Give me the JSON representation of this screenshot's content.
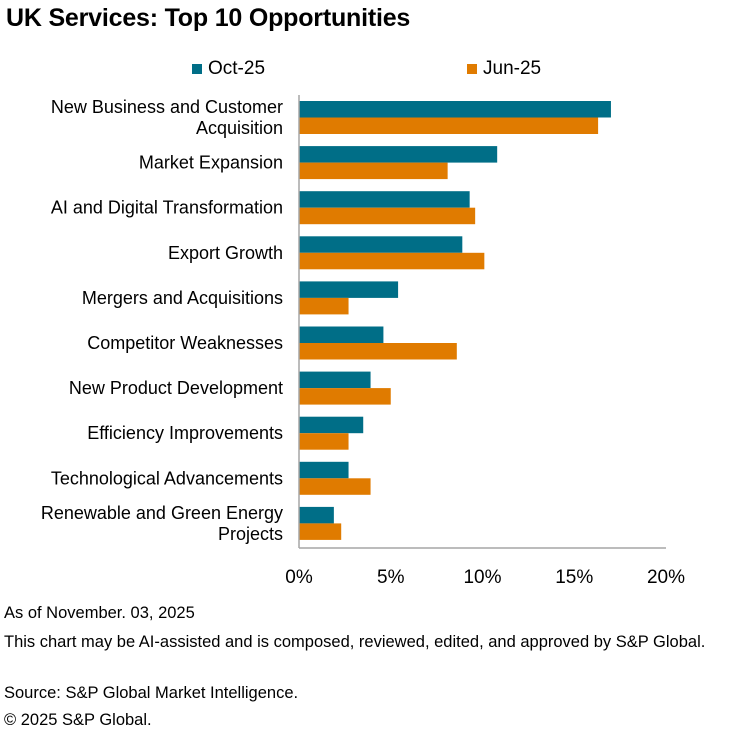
{
  "header": {
    "title": "UK Services: Top 10 Opportunities"
  },
  "colors": {
    "series1": "#006e87",
    "series2": "#e07b00",
    "axis": "#a6a6a6"
  },
  "chart_data": {
    "type": "bar",
    "orientation": "horizontal",
    "title": "UK Services: Top 10 Opportunities",
    "categories": [
      "New Business and Customer Acquisition",
      "Market Expansion",
      "AI and Digital Transformation",
      "Export Growth",
      "Mergers and Acquisitions",
      "Competitor Weaknesses",
      "New Product Development",
      "Efficiency Improvements",
      "Technological Advancements",
      "Renewable and Green Energy Projects"
    ],
    "category_lines": [
      [
        "New Business and Customer",
        "Acquisition"
      ],
      [
        "Market Expansion"
      ],
      [
        "AI and Digital Transformation"
      ],
      [
        "Export Growth"
      ],
      [
        "Mergers and Acquisitions"
      ],
      [
        "Competitor Weaknesses"
      ],
      [
        "New Product Development"
      ],
      [
        "Efficiency Improvements"
      ],
      [
        "Technological Advancements"
      ],
      [
        "Renewable and Green Energy",
        "Projects"
      ]
    ],
    "series": [
      {
        "name": "Oct-25",
        "values": [
          17.0,
          10.8,
          9.3,
          8.9,
          5.4,
          4.6,
          3.9,
          3.5,
          2.7,
          1.9
        ]
      },
      {
        "name": "Jun-25",
        "values": [
          16.3,
          8.1,
          9.6,
          10.1,
          2.7,
          8.6,
          5.0,
          2.7,
          3.9,
          2.3
        ]
      }
    ],
    "xlim": [
      0,
      20
    ],
    "xticks": [
      0,
      5,
      10,
      15,
      20
    ],
    "xtick_labels": [
      "0%",
      "5%",
      "10%",
      "15%",
      "20%"
    ],
    "xlabel": "",
    "ylabel": "",
    "legend_position": "top"
  },
  "footer": {
    "as_of": "As of November. 03, 2025",
    "disclaimer": "This chart may be AI-assisted and is composed, reviewed, edited, and approved by S&P Global.",
    "source": "Source: S&P Global Market Intelligence.",
    "copyright": "© 2025 S&P Global."
  }
}
